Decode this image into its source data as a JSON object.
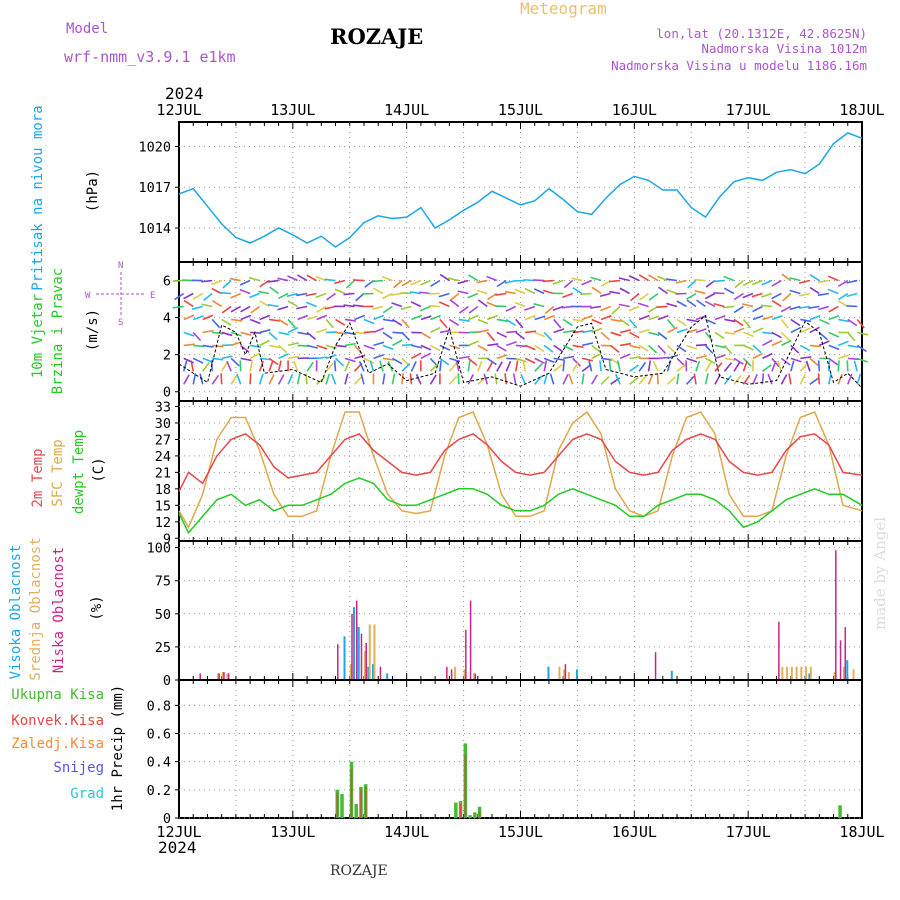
{
  "header": {
    "model_label": "Model",
    "model_name": "wrf-nmm_v3.9.1  e1km",
    "location": "ROZAJE",
    "product": "Meteogram",
    "coords": "lon,lat (20.1312E, 42.8625N)",
    "elevation": "Nadmorska Visina 1012m",
    "model_elevation": "Nadmorska Visina u modelu 1186.16m",
    "footer_location": "ROZAJE",
    "watermark": "made by Angel"
  },
  "time_axis": {
    "year_top": "2024",
    "year_bottom": "2024",
    "day_labels": [
      "12JUL",
      "13JUL",
      "14JUL",
      "15JUL",
      "16JUL",
      "17JUL",
      "18JUL"
    ],
    "start_hour": 0,
    "end_hour": 144
  },
  "colors": {
    "pressure": "#1aa7e8",
    "t2m": "#e8484a",
    "sfc": "#e0a84a",
    "dewpt": "#22cc22",
    "cloud_high": "#1aa7e8",
    "cloud_mid": "#e0b05a",
    "cloud_low": "#cc2288",
    "precip_total": "#44bb33",
    "precip_conv": "#e84444",
    "precip_snow": "#5555ee",
    "precip_frz": "#ff8833",
    "precip_hail": "#22cccc",
    "header_purple": "#aa55cc",
    "header_orange": "#e8c070",
    "grid": "#999999"
  },
  "chart_data": [
    {
      "type": "line",
      "panel": "pressure",
      "ylabel_title": "Pritisak na nivou mora",
      "ylabel_unit": "(hPa)",
      "ylim": [
        1011.5,
        1021.8
      ],
      "yticks": [
        1014,
        1017,
        1020
      ],
      "grid": true,
      "series": [
        {
          "name": "",
          "x": [
            0,
            3,
            6,
            9,
            12,
            15,
            18,
            21,
            24,
            27,
            30,
            33,
            36,
            39,
            42,
            45,
            48,
            51,
            54,
            57,
            60,
            63,
            66,
            69,
            72,
            75,
            78,
            81,
            84,
            87,
            90,
            93,
            96,
            99,
            102,
            105,
            108,
            111,
            114,
            117,
            120,
            123,
            126,
            129,
            132,
            135,
            138,
            141,
            144
          ],
          "y": [
            1016.5,
            1016.9,
            1015.6,
            1014.3,
            1013.3,
            1012.9,
            1013.4,
            1014.0,
            1013.5,
            1012.9,
            1013.4,
            1012.6,
            1013.3,
            1014.4,
            1014.9,
            1014.7,
            1014.8,
            1015.5,
            1014.0,
            1014.6,
            1015.3,
            1015.9,
            1016.7,
            1016.2,
            1015.7,
            1016.0,
            1016.9,
            1016.1,
            1015.2,
            1015.0,
            1016.2,
            1017.2,
            1017.8,
            1017.5,
            1016.8,
            1016.8,
            1015.5,
            1014.8,
            1016.3,
            1017.4,
            1017.7,
            1017.5,
            1018.1,
            1018.3,
            1018.0,
            1018.7,
            1020.2,
            1021.0,
            1020.6
          ]
        }
      ]
    },
    {
      "type": "line",
      "panel": "wind",
      "ylabel_title": "10m Vjetar",
      "ylabel_title2": "Brzina i Pravac",
      "ylabel_unit": "(m/s)",
      "compass": [
        "N",
        "S",
        "E",
        "W"
      ],
      "ylim": [
        -0.5,
        7
      ],
      "yticks": [
        0,
        2,
        4,
        6
      ],
      "grid": true,
      "series": [
        {
          "name": "",
          "x": [
            0,
            6,
            9,
            12,
            14,
            16,
            18,
            24,
            30,
            33,
            36,
            40,
            44,
            48,
            54,
            57,
            60,
            66,
            72,
            78,
            84,
            87,
            90,
            96,
            102,
            108,
            111,
            114,
            120,
            126,
            132,
            135,
            138,
            141,
            144
          ],
          "y": [
            1.5,
            0.5,
            3.6,
            3.2,
            2.0,
            3.2,
            1.0,
            1.2,
            0.5,
            2.5,
            3.7,
            1.0,
            1.5,
            0.6,
            1.0,
            3.4,
            0.5,
            0.8,
            0.3,
            1.0,
            3.5,
            3.7,
            1.2,
            0.8,
            1.0,
            3.5,
            4.1,
            0.8,
            0.4,
            0.6,
            3.8,
            3.2,
            0.5,
            1.0,
            0.2
          ]
        }
      ]
    },
    {
      "type": "line",
      "panel": "temperature",
      "ylabel_titles": [
        "2m Temp",
        "SFC Temp",
        "dewpt Temp"
      ],
      "ylabel_unit": "(C)",
      "ylim": [
        8.5,
        34
      ],
      "yticks": [
        9,
        12,
        15,
        18,
        21,
        24,
        27,
        30,
        33
      ],
      "grid": true,
      "series": [
        {
          "name": "2m Temp",
          "x": [
            0,
            2,
            5,
            8,
            11,
            14,
            17,
            20,
            23,
            26,
            29,
            32,
            35,
            38,
            41,
            44,
            47,
            50,
            53,
            56,
            59,
            62,
            65,
            68,
            71,
            74,
            77,
            80,
            83,
            86,
            89,
            92,
            95,
            98,
            101,
            104,
            107,
            110,
            113,
            116,
            119,
            122,
            125,
            128,
            131,
            134,
            137,
            140,
            144
          ],
          "y": [
            17.5,
            21,
            19,
            24,
            27,
            28,
            26,
            22,
            20,
            20.5,
            21,
            24,
            27,
            28,
            25,
            23,
            21,
            20.5,
            21,
            25,
            27,
            28,
            26,
            23,
            21,
            20.5,
            21,
            24,
            27,
            28,
            27,
            23,
            21,
            20.5,
            21,
            25,
            27,
            28,
            27,
            23,
            21,
            20.5,
            21,
            25,
            27.5,
            28,
            26,
            21,
            20.5
          ]
        },
        {
          "name": "SFC Temp",
          "x": [
            0,
            2,
            5,
            8,
            11,
            14,
            17,
            20,
            23,
            26,
            29,
            32,
            35,
            38,
            41,
            44,
            47,
            50,
            53,
            56,
            59,
            62,
            65,
            68,
            71,
            74,
            77,
            80,
            83,
            86,
            89,
            92,
            95,
            98,
            101,
            104,
            107,
            110,
            113,
            116,
            119,
            122,
            125,
            128,
            131,
            134,
            137,
            140,
            144
          ],
          "y": [
            14,
            11,
            17,
            27,
            31,
            31,
            25,
            17,
            13,
            13,
            14,
            24,
            32,
            32,
            24,
            17,
            14,
            13.5,
            14,
            24,
            31,
            32,
            26,
            17,
            13,
            13,
            14,
            25,
            30,
            32,
            28,
            18,
            14,
            13,
            14,
            24,
            31,
            32,
            28,
            17,
            13,
            13,
            14,
            24,
            31,
            32,
            26,
            15,
            14
          ]
        },
        {
          "name": "dewpt Temp",
          "x": [
            0,
            2,
            5,
            8,
            11,
            14,
            17,
            20,
            23,
            26,
            29,
            32,
            35,
            38,
            41,
            44,
            47,
            50,
            53,
            56,
            59,
            62,
            65,
            68,
            71,
            74,
            77,
            80,
            83,
            86,
            89,
            92,
            95,
            98,
            101,
            104,
            107,
            110,
            113,
            116,
            119,
            122,
            125,
            128,
            131,
            134,
            137,
            140,
            144
          ],
          "y": [
            13.5,
            10,
            13,
            16,
            17,
            15,
            16,
            14,
            15,
            15,
            16,
            17,
            19,
            20,
            19,
            16,
            15,
            15,
            16,
            17,
            18,
            18,
            17,
            15,
            14,
            14,
            15,
            17,
            18,
            17,
            16,
            15,
            13,
            13,
            15,
            16,
            17,
            17,
            16,
            14,
            11,
            12,
            14,
            16,
            17,
            18,
            17,
            17,
            15
          ]
        }
      ]
    },
    {
      "type": "bar",
      "panel": "clouds",
      "ylabel_titles": [
        "Visoka Oblacnost",
        "Srednja Oblacnost",
        "Niska Oblacnost"
      ],
      "ylabel_unit": "(%)",
      "ylim": [
        0,
        105
      ],
      "yticks": [
        0,
        25,
        50,
        75,
        100
      ],
      "grid": true,
      "series": [
        {
          "name": "Visoka Oblacnost",
          "x": [
            35,
            37,
            38,
            40,
            41,
            44,
            78,
            84,
            104,
            133,
            141
          ],
          "values": [
            33,
            55,
            40,
            10,
            12,
            5,
            10,
            8,
            7,
            5,
            15
          ]
        },
        {
          "name": "Srednja Oblacnost",
          "x": [
            8,
            9,
            10,
            36,
            39,
            40,
            41,
            58,
            60,
            62,
            80,
            81,
            82,
            127,
            128,
            129,
            130,
            131,
            132,
            133,
            138,
            140,
            142
          ],
          "values": [
            5,
            6,
            5,
            12,
            22,
            42,
            42,
            10,
            8,
            5,
            10,
            8,
            6,
            10,
            10,
            10,
            10,
            10,
            10,
            10,
            6,
            10,
            8
          ]
        },
        {
          "name": "Niska Oblacnost",
          "x": [
            4,
            8,
            9,
            10,
            33,
            36,
            37,
            38,
            39,
            42,
            56,
            57,
            60,
            61,
            62,
            81,
            100,
            126,
            138,
            139,
            140
          ],
          "values": [
            5,
            5,
            6,
            5,
            27,
            50,
            60,
            35,
            28,
            10,
            10,
            8,
            38,
            60,
            5,
            12,
            21,
            44,
            98,
            30,
            40
          ]
        }
      ]
    },
    {
      "type": "bar",
      "panel": "precip",
      "ylabel_titles": [
        "Ukupna Kisa",
        "Konvek.Kisa",
        "Zaledj.Kisa",
        "Snijeg",
        "Grad"
      ],
      "ylabel_unit": "1hr Precip (mm)",
      "ylim": [
        0,
        0.98
      ],
      "yticks": [
        0,
        0.2,
        0.4,
        0.6,
        0.8
      ],
      "grid": true,
      "series": [
        {
          "name": "Ukupna Kisa",
          "x": [
            33,
            34,
            36,
            37,
            38,
            39,
            58,
            59,
            60,
            61,
            62,
            63,
            139
          ],
          "values": [
            0.2,
            0.17,
            0.4,
            0.1,
            0.22,
            0.24,
            0.11,
            0.12,
            0.53,
            0.02,
            0.04,
            0.08,
            0.09
          ]
        },
        {
          "name": "Konvek.Kisa",
          "x": [
            33,
            36,
            38,
            39,
            59,
            60,
            63
          ],
          "values": [
            0.18,
            0.35,
            0.2,
            0.22,
            0.1,
            0.45,
            0.05
          ]
        }
      ]
    }
  ]
}
